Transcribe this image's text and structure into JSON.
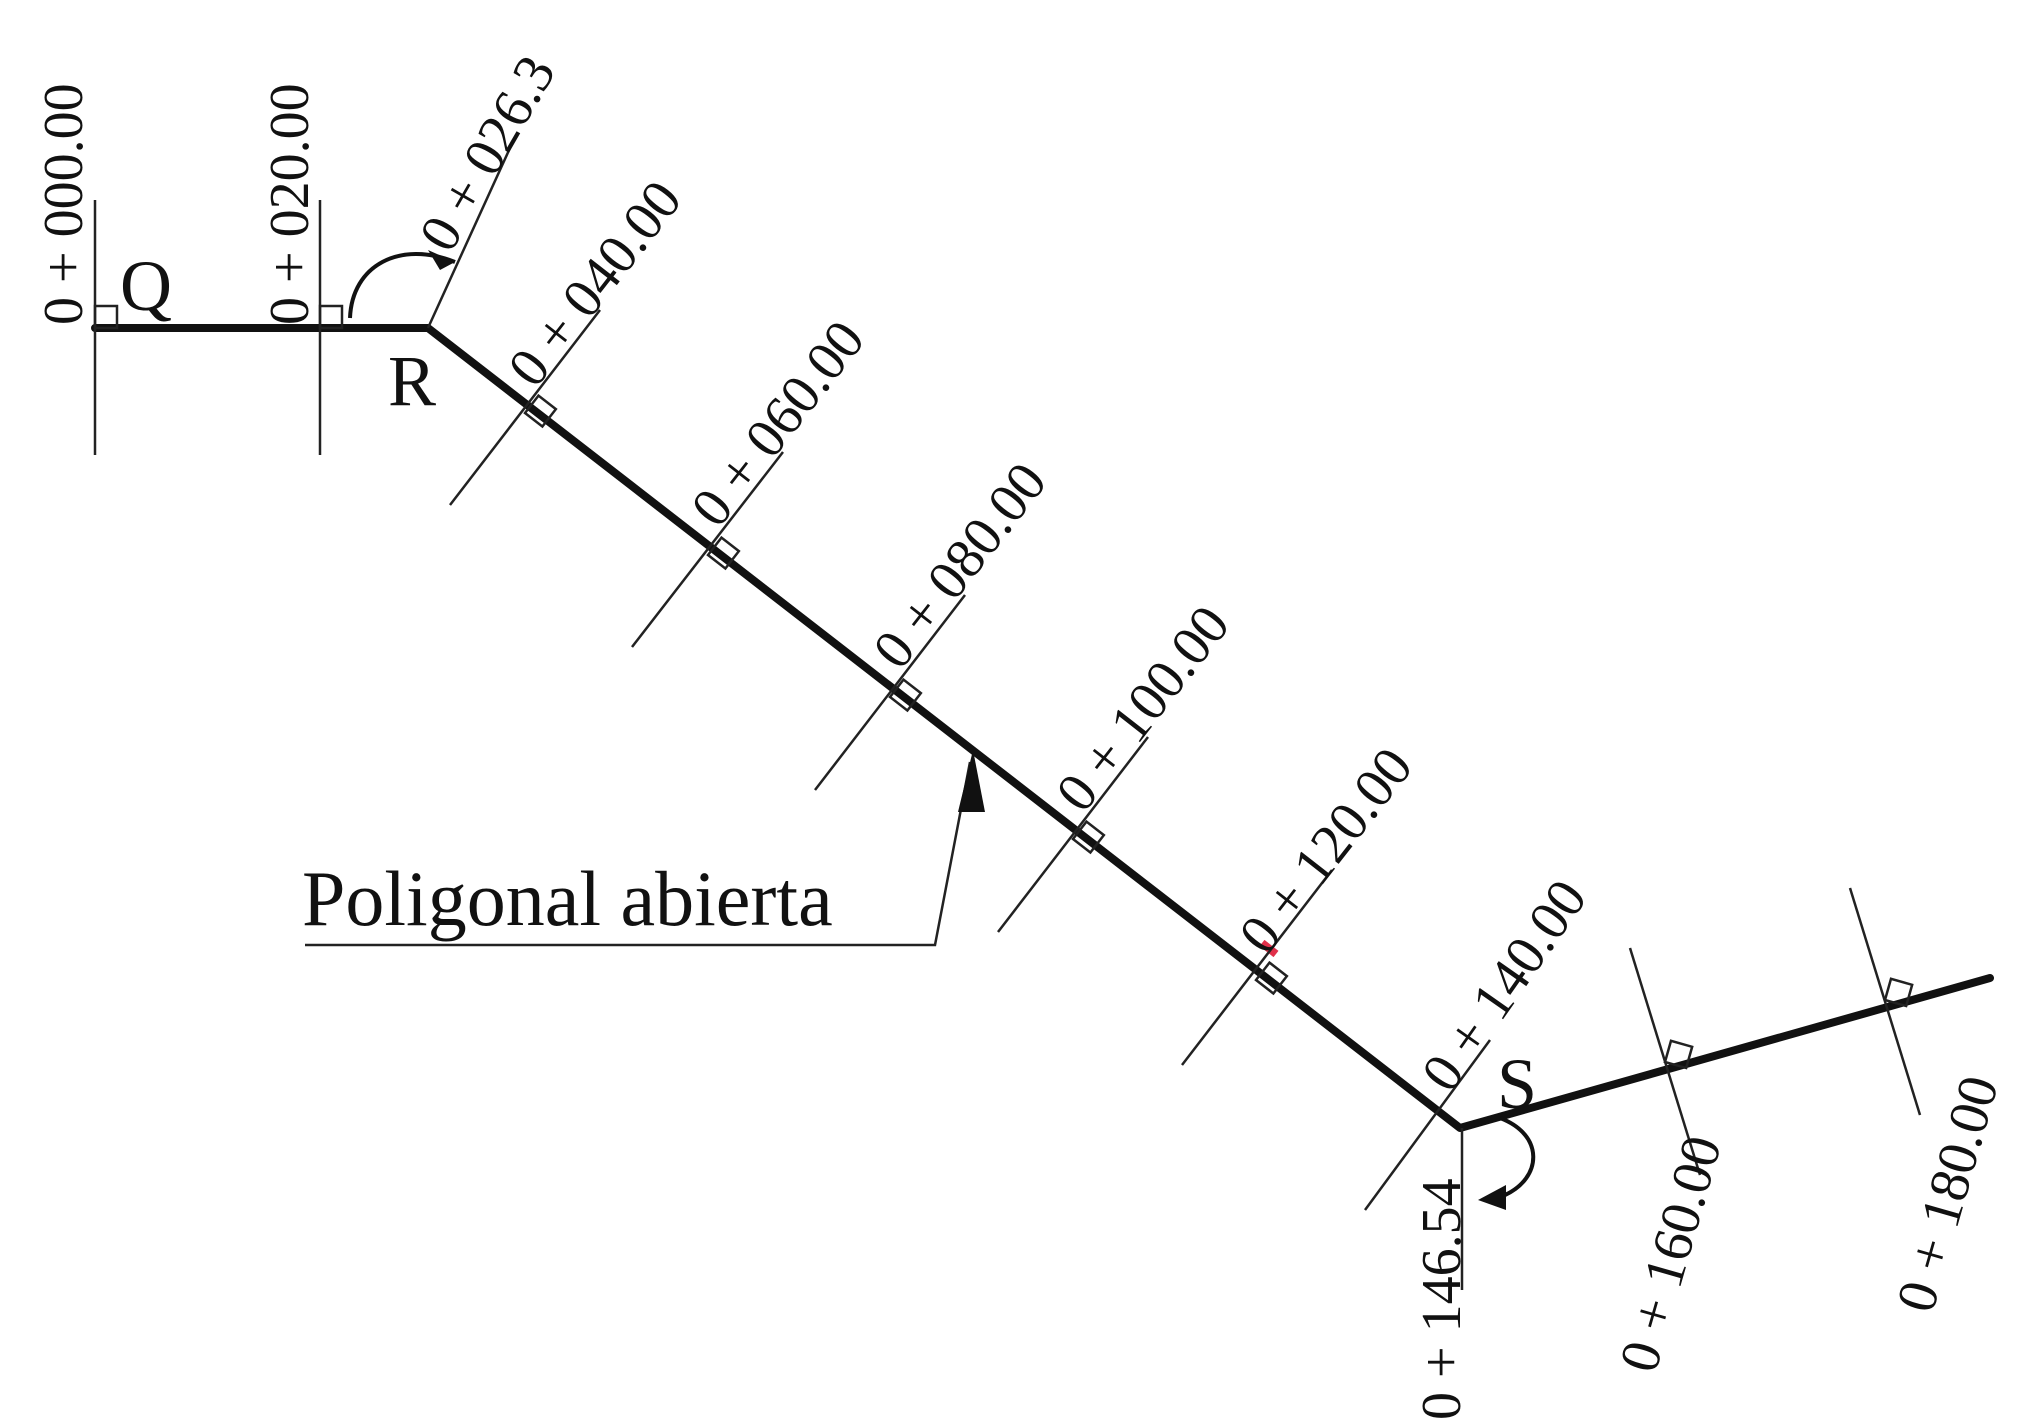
{
  "labels": {
    "point_q": "Q",
    "point_r": "R",
    "point_s": "S",
    "callout": "Poligonal abierta"
  },
  "stations": [
    "0 + 000.00",
    "0 + 020.00",
    "0 + 026.3",
    "0 + 040.00",
    "0 + 060.00",
    "0 + 080.00",
    "0 + 100.00",
    "0 + 120.00",
    "0 + 140.00",
    "0 + 146.54",
    "0 + 160.00",
    "0 + 180.00"
  ],
  "colors": {
    "line": "#111111",
    "accent": "#e0304a"
  }
}
